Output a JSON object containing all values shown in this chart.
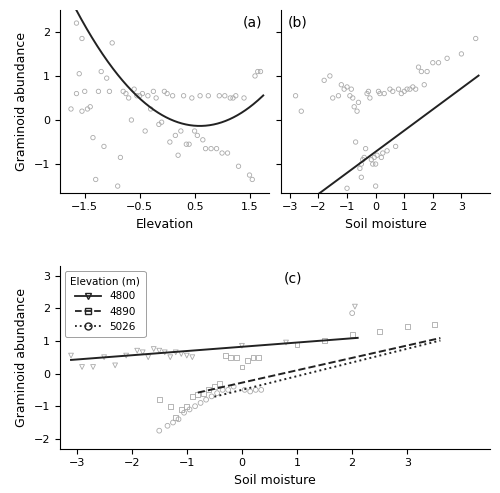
{
  "panel_a": {
    "label": "(a)",
    "xlabel": "Elevation",
    "ylabel": "Graminoid abundance",
    "xlim": [
      -1.95,
      1.85
    ],
    "ylim": [
      -1.65,
      2.5
    ],
    "xticks": [
      -1.5,
      -0.5,
      0.5,
      1.5
    ],
    "yticks": [
      -1,
      0,
      1,
      2
    ],
    "scatter_x": [
      -1.75,
      -1.65,
      -1.6,
      -1.55,
      -1.5,
      -1.45,
      -1.4,
      -1.35,
      -1.3,
      -1.25,
      -1.2,
      -1.15,
      -1.1,
      -1.05,
      -0.9,
      -0.85,
      -0.8,
      -0.75,
      -0.7,
      -0.65,
      -0.6,
      -0.55,
      -0.5,
      -0.45,
      -0.4,
      -0.35,
      -0.3,
      -0.25,
      -0.2,
      -0.15,
      -0.1,
      -0.05,
      0.0,
      0.05,
      0.1,
      0.15,
      0.2,
      0.25,
      0.3,
      0.35,
      0.4,
      0.45,
      0.5,
      0.55,
      0.6,
      0.65,
      0.7,
      0.75,
      0.8,
      0.9,
      0.95,
      1.0,
      1.05,
      1.1,
      1.15,
      1.2,
      1.25,
      1.3,
      1.4,
      1.5,
      1.55,
      1.6,
      1.65,
      -1.65,
      -1.55,
      -1.0,
      1.7
    ],
    "scatter_y": [
      0.25,
      0.6,
      1.05,
      0.2,
      0.65,
      0.25,
      0.3,
      -0.4,
      -1.35,
      0.65,
      1.1,
      -0.6,
      0.95,
      0.65,
      -1.5,
      -0.85,
      0.65,
      0.6,
      0.5,
      0.0,
      0.7,
      0.55,
      0.55,
      0.6,
      -0.25,
      0.55,
      0.25,
      0.65,
      0.5,
      -0.1,
      -0.05,
      0.65,
      0.6,
      -0.5,
      0.55,
      -0.35,
      -0.8,
      -0.25,
      0.55,
      -0.55,
      -0.55,
      0.5,
      -0.25,
      -0.35,
      0.55,
      -0.45,
      -0.65,
      0.55,
      -0.65,
      -0.65,
      0.55,
      -0.75,
      0.55,
      -0.75,
      0.5,
      0.5,
      0.55,
      -1.05,
      0.5,
      -1.25,
      -1.35,
      1.0,
      1.1,
      2.2,
      1.85,
      1.75,
      1.1
    ],
    "curve_x0": -1.85,
    "curve_x1": 1.75,
    "curve_coeffs": [
      0.05,
      -0.62,
      0.52
    ]
  },
  "panel_b": {
    "label": "(b)",
    "xlabel": "Soil moisture",
    "ylabel": "",
    "xlim": [
      -3.3,
      4.0
    ],
    "ylim": [
      -1.65,
      2.5
    ],
    "xticks": [
      -3,
      -2,
      -1,
      0,
      1,
      2,
      3
    ],
    "yticks": [
      -1,
      0,
      1,
      2
    ],
    "scatter_x": [
      -2.8,
      -2.6,
      -1.8,
      -1.6,
      -1.5,
      -1.3,
      -1.2,
      -1.1,
      -1.0,
      -0.9,
      -0.85,
      -0.8,
      -0.75,
      -0.7,
      -0.65,
      -0.6,
      -0.55,
      -0.5,
      -0.45,
      -0.4,
      -0.35,
      -0.3,
      -0.25,
      -0.2,
      -0.15,
      -0.1,
      -0.05,
      0.0,
      0.05,
      0.1,
      0.15,
      0.2,
      0.25,
      0.3,
      0.4,
      0.5,
      0.6,
      0.7,
      0.8,
      0.9,
      1.0,
      1.1,
      1.2,
      1.3,
      1.4,
      1.5,
      1.6,
      1.7,
      1.8,
      2.0,
      2.2,
      2.5,
      3.0,
      3.5,
      -1.0,
      0.0,
      -0.5
    ],
    "scatter_y": [
      0.55,
      0.2,
      0.9,
      1.0,
      0.5,
      0.55,
      0.8,
      0.7,
      0.75,
      0.55,
      0.7,
      0.5,
      0.3,
      -0.5,
      0.2,
      0.4,
      -1.1,
      -1.0,
      -0.9,
      -0.85,
      -0.65,
      0.6,
      0.65,
      0.5,
      -0.9,
      -1.0,
      -0.85,
      -1.0,
      -0.8,
      0.65,
      0.6,
      -0.85,
      -0.75,
      0.6,
      -0.7,
      0.7,
      0.65,
      -0.6,
      0.7,
      0.6,
      0.65,
      0.7,
      0.7,
      0.75,
      0.7,
      1.2,
      1.1,
      0.8,
      1.1,
      1.3,
      1.3,
      1.4,
      1.5,
      1.85,
      -1.55,
      -1.5,
      -1.3
    ],
    "line_x0": -2.0,
    "line_x1": 3.6,
    "line_slope": 0.48,
    "line_intercept": -0.72
  },
  "panel_c": {
    "label": "(c)",
    "xlabel": "Soil moisture",
    "ylabel": "Graminoid abundance",
    "xlim": [
      -3.3,
      4.5
    ],
    "ylim": [
      -2.3,
      3.3
    ],
    "xticks": [
      -3,
      -2,
      -1,
      0,
      1,
      2,
      3
    ],
    "yticks": [
      -2,
      -1,
      0,
      1,
      2,
      3
    ],
    "legend_title": "Elevation (m)",
    "elevations": [
      "4800",
      "4890",
      "5026"
    ],
    "line_styles": [
      "-",
      "--",
      ":"
    ],
    "line_params": [
      {
        "slope": 0.13,
        "intercept": 0.82,
        "x0": -3.1,
        "x1": 2.1
      },
      {
        "slope": 0.38,
        "intercept": -0.28,
        "x0": -0.8,
        "x1": 3.6
      },
      {
        "slope": 0.42,
        "intercept": -0.5,
        "x0": -0.5,
        "x1": 3.6
      }
    ],
    "scatter_groups": [
      {
        "x": [
          -3.1,
          -2.9,
          -2.7,
          -2.5,
          -2.3,
          -2.1,
          -1.9,
          -1.8,
          -1.7,
          -1.6,
          -1.5,
          -1.4,
          -1.3,
          -1.2,
          -1.1,
          -1.0,
          -0.9,
          0.0,
          0.8,
          2.05
        ],
        "y": [
          0.55,
          0.2,
          0.2,
          0.5,
          0.25,
          0.55,
          0.7,
          0.65,
          0.5,
          0.75,
          0.7,
          0.65,
          0.5,
          0.65,
          0.6,
          0.55,
          0.5,
          0.85,
          0.95,
          2.05
        ],
        "marker": "v"
      },
      {
        "x": [
          -1.5,
          -1.3,
          -1.2,
          -1.1,
          -1.0,
          -0.9,
          -0.8,
          -0.7,
          -0.6,
          -0.5,
          -0.4,
          -0.3,
          -0.2,
          -0.1,
          0.0,
          0.1,
          0.2,
          0.3,
          1.0,
          1.5,
          2.0,
          2.5,
          3.0,
          3.5
        ],
        "y": [
          -0.8,
          -1.0,
          -1.35,
          -1.1,
          -1.0,
          -0.7,
          -0.65,
          -0.6,
          -0.5,
          -0.4,
          -0.3,
          0.55,
          0.5,
          0.5,
          0.2,
          0.4,
          0.5,
          0.5,
          0.9,
          1.0,
          1.2,
          1.3,
          1.45,
          1.5
        ],
        "marker": "s"
      },
      {
        "x": [
          -1.5,
          -1.35,
          -1.25,
          -1.15,
          -1.05,
          -0.95,
          -0.85,
          -0.75,
          -0.65,
          -0.55,
          -0.45,
          -0.35,
          -0.25,
          -0.15,
          0.05,
          0.15,
          0.25,
          0.35,
          2.0
        ],
        "y": [
          -1.75,
          -1.6,
          -1.5,
          -1.4,
          -1.2,
          -1.1,
          -1.0,
          -0.9,
          -0.8,
          -0.7,
          -0.6,
          -0.5,
          -0.5,
          -0.4,
          -0.5,
          -0.55,
          -0.5,
          -0.5,
          1.85
        ],
        "marker": "o"
      }
    ]
  },
  "scatter_color": "#aaaaaa",
  "line_color": "#222222",
  "bg_color": "#ffffff"
}
